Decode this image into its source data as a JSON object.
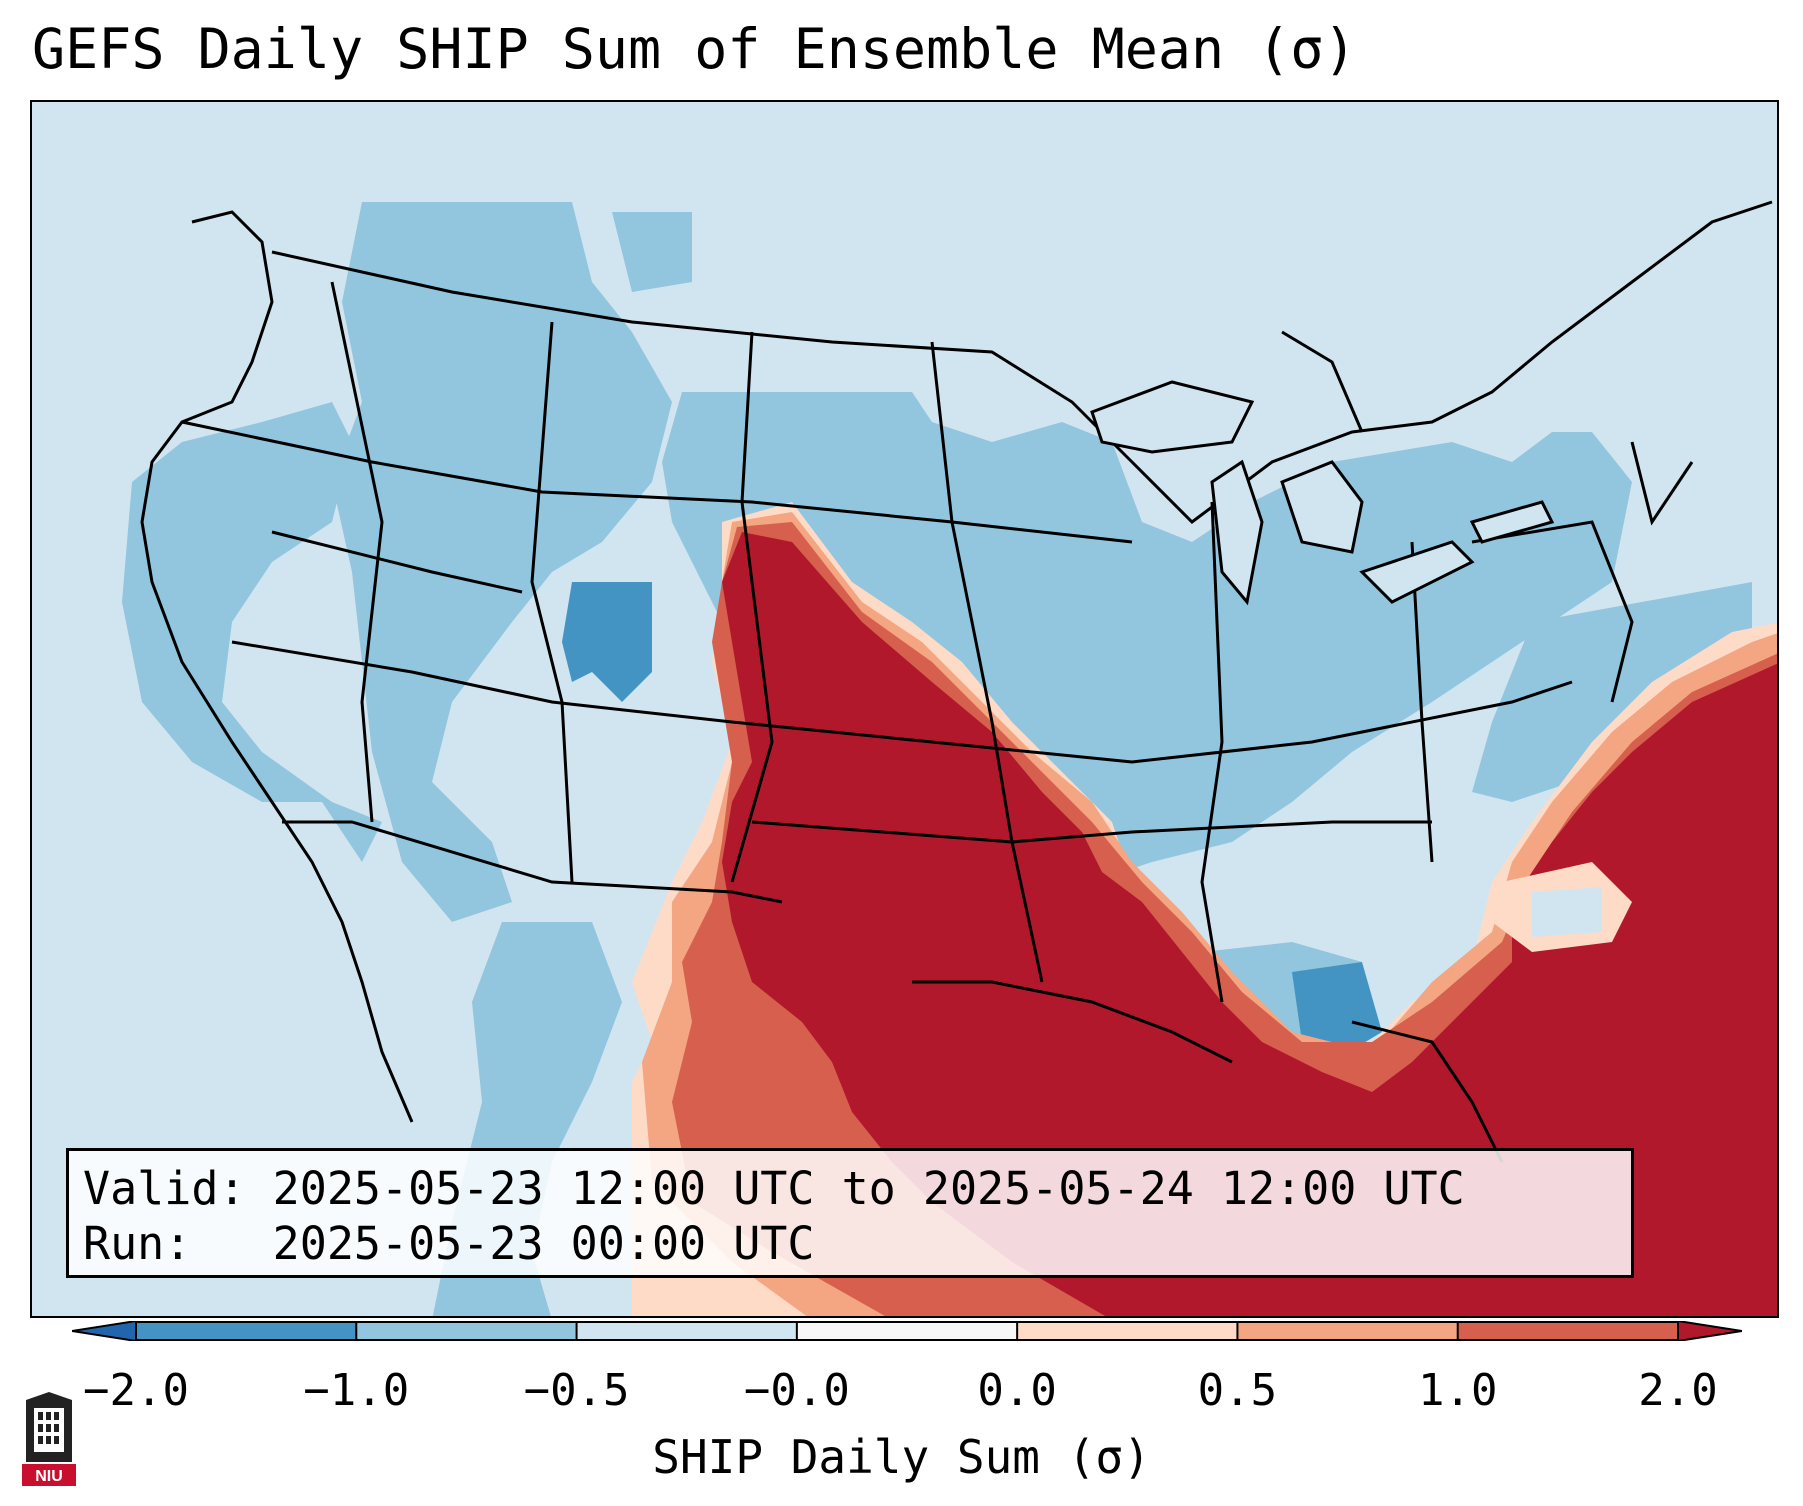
{
  "title": "GEFS Daily SHIP Sum of Ensemble Mean (σ)",
  "info": {
    "valid_line": "Valid: 2025-05-23 12:00 UTC to 2025-05-24 12:00 UTC",
    "run_line": "Run:   2025-05-23 00:00 UTC"
  },
  "colorbar": {
    "label": "SHIP Daily Sum (σ)",
    "ticks": [
      "−2.0",
      "−1.0",
      "−0.5",
      "−0.0",
      "0.0",
      "0.5",
      "1.0",
      "2.0"
    ],
    "colors": [
      "#2166ac",
      "#4393c3",
      "#92c5de",
      "#d1e5f0",
      "#f7f7f7",
      "#fddbc7",
      "#f4a582",
      "#d6604d",
      "#b2182b"
    ],
    "extend": "both"
  },
  "logo": {
    "text": "NIU",
    "logo_name": "niu-logo"
  }
}
